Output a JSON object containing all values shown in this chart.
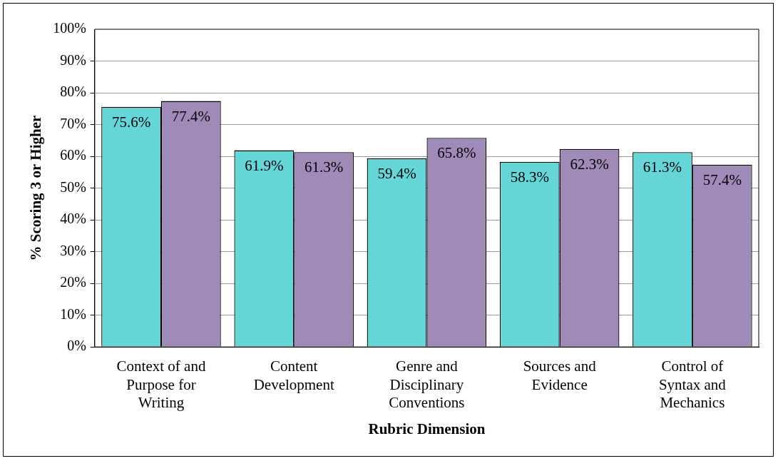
{
  "chart_data": {
    "type": "bar",
    "xlabel": "Rubric Dimension",
    "ylabel": "% Scoring 3 or Higher",
    "categories": [
      "Context of and Purpose for Writing",
      "Content Development",
      "Genre and Disciplinary Conventions",
      "Sources and Evidence",
      "Control of Syntax and Mechanics"
    ],
    "series": [
      {
        "color": "#66d5d8",
        "values": [
          75.6,
          61.9,
          59.4,
          58.3,
          61.3
        ],
        "value_labels": [
          "75.6%",
          "61.9%",
          "59.4%",
          "58.3%",
          "61.3%"
        ]
      },
      {
        "color": "#a08ab8",
        "values": [
          77.4,
          61.3,
          65.8,
          62.3,
          57.4
        ],
        "value_labels": [
          "77.4%",
          "61.3%",
          "65.8%",
          "62.3%",
          "57.4%"
        ]
      }
    ],
    "ylim": [
      0,
      100
    ],
    "yticks": [
      {
        "value": 0,
        "label": "0%"
      },
      {
        "value": 10,
        "label": "10%"
      },
      {
        "value": 20,
        "label": "20%"
      },
      {
        "value": 30,
        "label": "30%"
      },
      {
        "value": 40,
        "label": "40%"
      },
      {
        "value": 50,
        "label": "50%"
      },
      {
        "value": 60,
        "label": "60%"
      },
      {
        "value": 70,
        "label": "70%"
      },
      {
        "value": 80,
        "label": "80%"
      },
      {
        "value": 90,
        "label": "90%"
      },
      {
        "value": 100,
        "label": "100%"
      }
    ],
    "grid": "y",
    "legend": false
  }
}
